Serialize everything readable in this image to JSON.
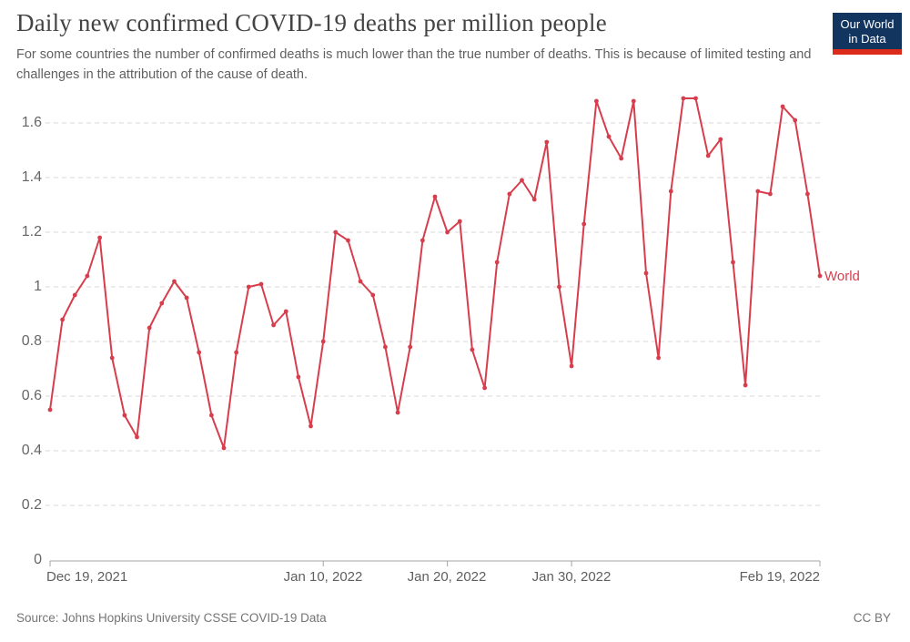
{
  "header": {
    "title": "Daily new confirmed COVID-19 deaths per million people",
    "subtitle": "For some countries the number of confirmed deaths is much lower than the true number of deaths. This is because of limited testing and challenges in the attribution of the cause of death.",
    "logo": {
      "line1": "Our World",
      "line2": "in Data",
      "bg_color": "#12355f",
      "bar_color": "#dc2a1b"
    }
  },
  "chart_data": {
    "type": "line",
    "title": "Daily new confirmed COVID-19 deaths per million people",
    "xlabel": "",
    "ylabel": "",
    "ylim": [
      0,
      1.7
    ],
    "grid": "horizontal-dashed",
    "legend_position": "end-of-line",
    "x": [
      "2021-12-19",
      "2021-12-20",
      "2021-12-21",
      "2021-12-22",
      "2021-12-23",
      "2021-12-24",
      "2021-12-25",
      "2021-12-26",
      "2021-12-27",
      "2021-12-28",
      "2021-12-29",
      "2021-12-30",
      "2021-12-31",
      "2022-01-01",
      "2022-01-02",
      "2022-01-03",
      "2022-01-04",
      "2022-01-05",
      "2022-01-06",
      "2022-01-07",
      "2022-01-08",
      "2022-01-09",
      "2022-01-10",
      "2022-01-11",
      "2022-01-12",
      "2022-01-13",
      "2022-01-14",
      "2022-01-15",
      "2022-01-16",
      "2022-01-17",
      "2022-01-18",
      "2022-01-19",
      "2022-01-20",
      "2022-01-21",
      "2022-01-22",
      "2022-01-23",
      "2022-01-24",
      "2022-01-25",
      "2022-01-26",
      "2022-01-27",
      "2022-01-28",
      "2022-01-29",
      "2022-01-30",
      "2022-01-31",
      "2022-02-01",
      "2022-02-02",
      "2022-02-03",
      "2022-02-04",
      "2022-02-05",
      "2022-02-06",
      "2022-02-07",
      "2022-02-08",
      "2022-02-09",
      "2022-02-10",
      "2022-02-11",
      "2022-02-12",
      "2022-02-13",
      "2022-02-14",
      "2022-02-15",
      "2022-02-16",
      "2022-02-17",
      "2022-02-18",
      "2022-02-19"
    ],
    "series": [
      {
        "name": "World",
        "color": "#d73e4d",
        "values": [
          0.55,
          0.88,
          0.97,
          1.04,
          1.18,
          0.74,
          0.53,
          0.45,
          0.85,
          0.94,
          1.02,
          0.96,
          0.76,
          0.53,
          0.41,
          0.76,
          1.0,
          1.01,
          0.86,
          0.91,
          0.67,
          0.49,
          0.8,
          1.2,
          1.17,
          1.02,
          0.97,
          0.78,
          0.54,
          0.78,
          1.17,
          1.33,
          1.2,
          1.24,
          0.77,
          0.63,
          1.09,
          1.34,
          1.39,
          1.32,
          1.53,
          1.0,
          0.71,
          1.23,
          1.68,
          1.55,
          1.47,
          1.68,
          1.05,
          0.74,
          1.35,
          1.69,
          1.69,
          1.48,
          1.54,
          1.09,
          0.64,
          1.35,
          1.34,
          1.66,
          1.61,
          1.34,
          1.04
        ]
      }
    ],
    "yticks": [
      {
        "value": 0.0,
        "label": "0"
      },
      {
        "value": 0.2,
        "label": "0.2"
      },
      {
        "value": 0.4,
        "label": "0.4"
      },
      {
        "value": 0.6,
        "label": "0.6"
      },
      {
        "value": 0.8,
        "label": "0.8"
      },
      {
        "value": 1.0,
        "label": "1"
      },
      {
        "value": 1.2,
        "label": "1.2"
      },
      {
        "value": 1.4,
        "label": "1.4"
      },
      {
        "value": 1.6,
        "label": "1.6"
      }
    ],
    "xticks": [
      {
        "day": 0,
        "label": "Dec 19, 2021"
      },
      {
        "day": 22,
        "label": "Jan 10, 2022"
      },
      {
        "day": 32,
        "label": "Jan 20, 2022"
      },
      {
        "day": 42,
        "label": "Jan 30, 2022"
      },
      {
        "day": 62,
        "label": "Feb 19, 2022"
      }
    ]
  },
  "footer": {
    "source": "Source: Johns Hopkins University CSSE COVID-19 Data",
    "license": "CC BY"
  }
}
